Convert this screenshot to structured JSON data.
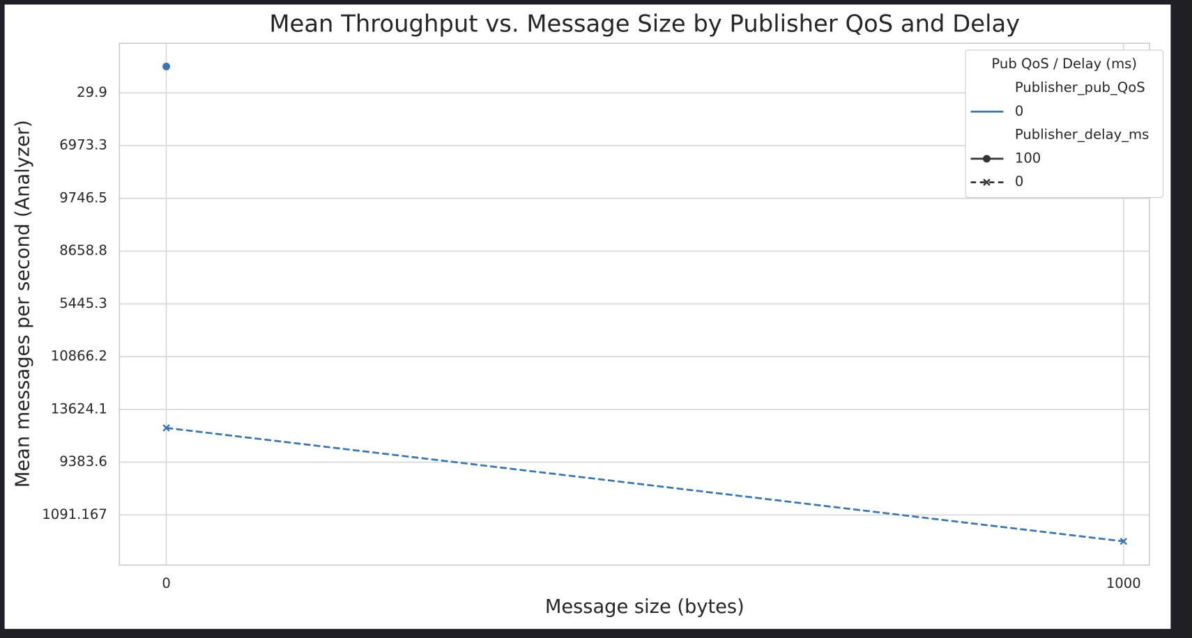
{
  "chart_data": {
    "type": "line",
    "title": "Mean Throughput vs. Message Size by Publisher QoS and Delay",
    "xlabel": "Message size (bytes)",
    "ylabel": "Mean messages per second (Analyzer)",
    "xlim": [
      -49,
      1027
    ],
    "xticks": [
      0,
      1000
    ],
    "ylim": [
      -0.94,
      8.95
    ],
    "y_inverted": true,
    "yticks": [
      {
        "value": 0,
        "label": "29.9"
      },
      {
        "value": 1,
        "label": "6973.3"
      },
      {
        "value": 2,
        "label": "9746.5"
      },
      {
        "value": 3,
        "label": "8658.8"
      },
      {
        "value": 4,
        "label": "5445.3"
      },
      {
        "value": 5,
        "label": "10866.2"
      },
      {
        "value": 6,
        "label": "13624.1"
      },
      {
        "value": 7,
        "label": "9383.6"
      },
      {
        "value": 8,
        "label": "1091.167"
      }
    ],
    "grid": true,
    "legend": {
      "title": "Pub QoS / Delay (ms)",
      "hue_title": "Publisher_pub_QoS",
      "hue_labels": [
        "0"
      ],
      "style_title": "Publisher_delay_ms",
      "position": "upper right"
    },
    "series": [
      {
        "name": "100",
        "color": "#3a75b0",
        "marker": "circle",
        "dashed": false,
        "x": [
          0
        ],
        "values": [
          -0.5
        ]
      },
      {
        "name": "0",
        "color": "#3a75b0",
        "marker": "x",
        "dashed": true,
        "x": [
          0,
          1000
        ],
        "values": [
          6.35,
          8.5
        ]
      }
    ]
  }
}
